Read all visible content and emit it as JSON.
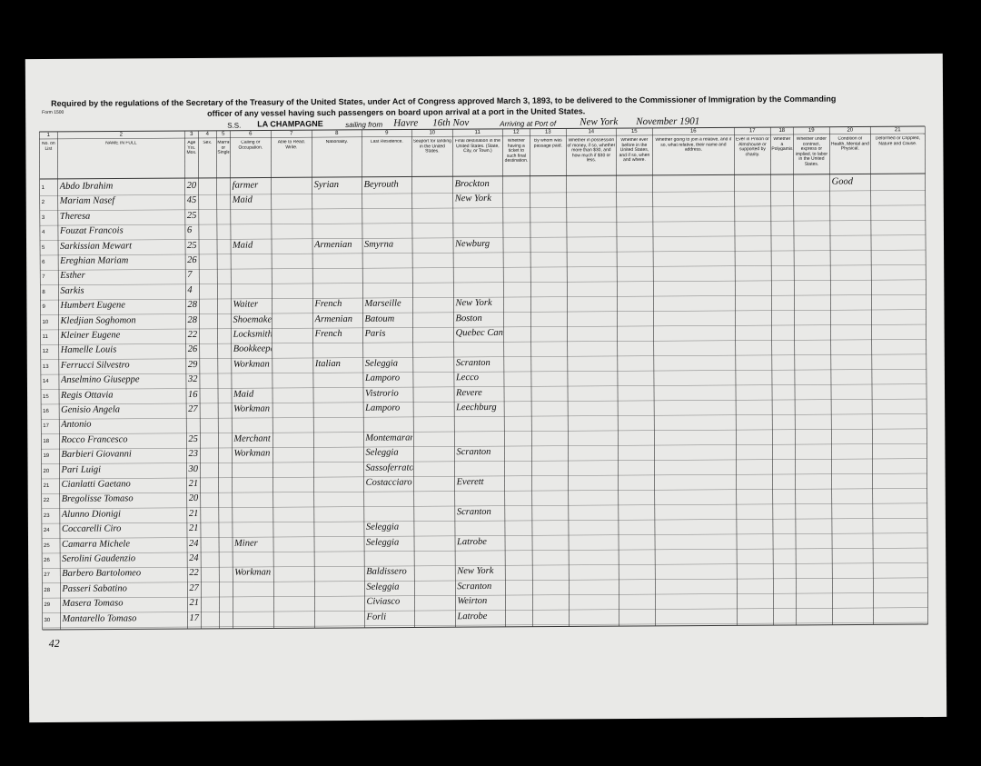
{
  "header": {
    "line1": "Required by the regulations of the Secretary of the Treasury of the United States, under Act of Congress approved March 3, 1893, to be delivered to the Commissioner of Immigration by the Commanding",
    "line2": "officer of any vessel having such passengers on board upon arrival at a port in the United States.",
    "form_no": "Form 1500",
    "ss_label": "S.S.",
    "ship": "LA CHAMPAGNE",
    "sailing_label": "sailing from",
    "sailing_from": "Havre",
    "sailing_date": "16th Nov",
    "arriving_label": "Arriving at Port of",
    "port": "New York",
    "arrival_date": "November 1901"
  },
  "columns": [
    {
      "num": "1",
      "label": "No. on List"
    },
    {
      "num": "2",
      "label": "NAME IN FULL"
    },
    {
      "num": "3",
      "label": "Age Yrs. Mos."
    },
    {
      "num": "4",
      "label": "Sex."
    },
    {
      "num": "5",
      "label": "Married or Single."
    },
    {
      "num": "6",
      "label": "Calling or Occupation."
    },
    {
      "num": "7",
      "label": "Able to Read. Write."
    },
    {
      "num": "8",
      "label": "Nationality."
    },
    {
      "num": "9",
      "label": "Last Residence."
    },
    {
      "num": "10",
      "label": "Seaport for landing in the United States."
    },
    {
      "num": "11",
      "label": "Final destination in the United States. (State, City, or Town.)"
    },
    {
      "num": "12",
      "label": "Whether having a ticket to such final destination."
    },
    {
      "num": "13",
      "label": "By whom was passage paid."
    },
    {
      "num": "14",
      "label": "Whether in possession of money, if so, whether more than $30, and how much if $30 or less."
    },
    {
      "num": "15",
      "label": "Whether ever before in the United States, and if so, when and where."
    },
    {
      "num": "16",
      "label": "Whether going to join a relative, and if so, what relative, their name and address."
    },
    {
      "num": "17",
      "label": "Ever in Prison or Almshouse or supported by charity."
    },
    {
      "num": "18",
      "label": "Whether a Polygamist."
    },
    {
      "num": "19",
      "label": "Whether under contract, express or implied, to labor in the United States."
    },
    {
      "num": "20",
      "label": "Condition of Health, Mental and Physical."
    },
    {
      "num": "21",
      "label": "Deformed or Crippled, Nature and Cause."
    }
  ],
  "rows": [
    {
      "no": "1",
      "name": "Abdo Ibrahim",
      "age": "20",
      "occupation": "farmer",
      "nationality": "Syrian",
      "residence": "Beyrouth",
      "destination": "Brockton",
      "health": "Good"
    },
    {
      "no": "2",
      "name": "Mariam Nasef",
      "age": "45",
      "occupation": "Maid",
      "destination": "New York"
    },
    {
      "no": "3",
      "name": "Theresa",
      "age": "25"
    },
    {
      "no": "4",
      "name": "Fouzat Francois",
      "age": "6"
    },
    {
      "no": "5",
      "name": "Sarkissian Mewart",
      "age": "25",
      "occupation": "Maid",
      "nationality": "Armenian",
      "residence": "Smyrna",
      "destination": "Newburg"
    },
    {
      "no": "6",
      "name": "Ereghian Mariam",
      "age": "26"
    },
    {
      "no": "7",
      "name": "Esther",
      "age": "7"
    },
    {
      "no": "8",
      "name": "Sarkis",
      "age": "4"
    },
    {
      "no": "9",
      "name": "Humbert Eugene",
      "age": "28",
      "occupation": "Waiter",
      "nationality": "French",
      "residence": "Marseille",
      "destination": "New York"
    },
    {
      "no": "10",
      "name": "Kledjian Soghomon",
      "age": "28",
      "occupation": "Shoemaker",
      "nationality": "Armenian",
      "residence": "Batoum",
      "destination": "Boston"
    },
    {
      "no": "11",
      "name": "Kleiner Eugene",
      "age": "22",
      "occupation": "Locksmith",
      "nationality": "French",
      "residence": "Paris",
      "destination": "Quebec Canada"
    },
    {
      "no": "12",
      "name": "Hamelle Louis",
      "age": "26",
      "occupation": "Bookkeeper"
    },
    {
      "no": "13",
      "name": "Ferrucci Silvestro",
      "age": "29",
      "occupation": "Workman",
      "nationality": "Italian",
      "residence": "Seleggia",
      "destination": "Scranton"
    },
    {
      "no": "14",
      "name": "Anselmino Giuseppe",
      "age": "32",
      "residence": "Lamporo",
      "destination": "Lecco"
    },
    {
      "no": "15",
      "name": "Regis Ottavia",
      "age": "16",
      "occupation": "Maid",
      "residence": "Vistrorio",
      "destination": "Revere"
    },
    {
      "no": "16",
      "name": "Genisio Angela",
      "age": "27",
      "occupation": "Workman",
      "residence": "Lamporo",
      "destination": "Leechburg"
    },
    {
      "no": "17",
      "name": "Antonio"
    },
    {
      "no": "18",
      "name": "Rocco Francesco",
      "age": "25",
      "occupation": "Merchant",
      "residence": "Montemarano"
    },
    {
      "no": "19",
      "name": "Barbieri Giovanni",
      "age": "23",
      "occupation": "Workman",
      "residence": "Seleggia",
      "destination": "Scranton"
    },
    {
      "no": "20",
      "name": "Pari Luigi",
      "age": "30",
      "residence": "Sassoferrato"
    },
    {
      "no": "21",
      "name": "Cianlatti Gaetano",
      "age": "21",
      "residence": "Costacciaro",
      "destination": "Everett"
    },
    {
      "no": "22",
      "name": "Bregolisse Tomaso",
      "age": "20"
    },
    {
      "no": "23",
      "name": "Alunno Dionigi",
      "age": "21",
      "destination": "Scranton"
    },
    {
      "no": "24",
      "name": "Coccarelli Ciro",
      "age": "21",
      "residence": "Seleggia"
    },
    {
      "no": "25",
      "name": "Camarra Michele",
      "age": "24",
      "occupation": "Miner",
      "residence": "Seleggia",
      "destination": "Latrobe"
    },
    {
      "no": "26",
      "name": "Serolini Gaudenzio",
      "age": "24"
    },
    {
      "no": "27",
      "name": "Barbero Bartolomeo",
      "age": "22",
      "occupation": "Workman",
      "residence": "Baldissero",
      "destination": "New York"
    },
    {
      "no": "28",
      "name": "Passeri Sabatino",
      "age": "27",
      "residence": "Seleggia",
      "destination": "Scranton"
    },
    {
      "no": "29",
      "name": "Masera Tomaso",
      "age": "21",
      "residence": "Civiasco",
      "destination": "Weirton"
    },
    {
      "no": "30",
      "name": "Mantarello Tomaso",
      "age": "17",
      "residence": "Forli",
      "destination": "Latrobe"
    }
  ],
  "footer": {
    "sheet": "42"
  }
}
